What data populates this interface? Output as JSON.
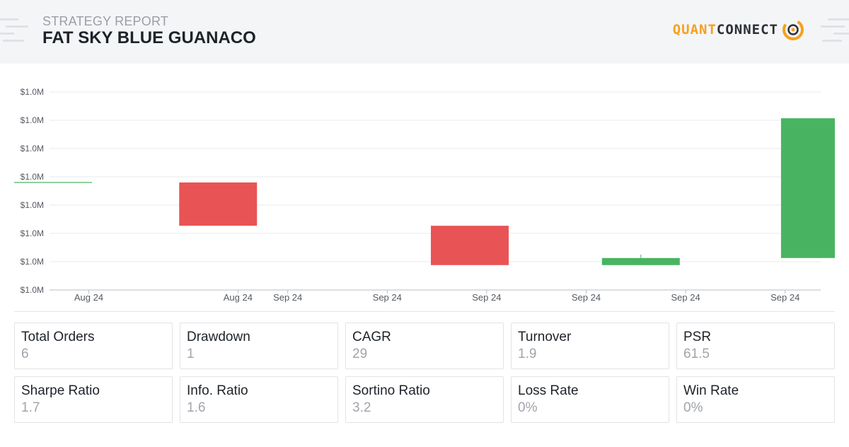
{
  "header": {
    "eyebrow": "STRATEGY REPORT",
    "title": "FAT SKY BLUE GUANACO",
    "logo_part1": "QUANT",
    "logo_part2": "CONNECT"
  },
  "colors": {
    "up": "#48b461",
    "down": "#e85455",
    "grid": "#e6e8eb",
    "axis_text": "#555a62",
    "brand_orange": "#f5a11c",
    "brand_dark": "#2b3036"
  },
  "chart_data": {
    "type": "candlestick",
    "title": "",
    "ylabel": "",
    "xlabel": "",
    "y_tick_labels": [
      "$1.0M",
      "$1.0M",
      "$1.0M",
      "$1.0M",
      "$1.0M",
      "$1.0M",
      "$1.0M",
      "$1.0M"
    ],
    "ylim": [
      0,
      7
    ],
    "x_tick_labels": [
      "Aug 24",
      "Aug 24",
      "Sep 24",
      "Sep 24",
      "Sep 24",
      "Sep 24",
      "Sep 24",
      "Sep 24"
    ],
    "x_tick_positions": [
      0.5,
      2.0,
      2.5,
      3.5,
      4.5,
      5.5,
      6.5,
      7.5
    ],
    "xlim": [
      -0.25,
      8.0
    ],
    "candles": [
      {
        "x": 0.0,
        "open": 3.8,
        "close": 3.8,
        "high": 3.8,
        "low": 3.8
      },
      {
        "x": 1.8,
        "open": 3.8,
        "close": 2.27,
        "high": 3.8,
        "low": 2.27
      },
      {
        "x": 4.33,
        "open": 2.27,
        "close": 0.88,
        "high": 2.27,
        "low": 0.88
      },
      {
        "x": 6.05,
        "open": 0.88,
        "close": 1.13,
        "high": 1.25,
        "low": 0.88
      },
      {
        "x": 7.85,
        "open": 1.13,
        "close": 6.07,
        "high": 6.07,
        "low": 1.13
      }
    ]
  },
  "stats": [
    {
      "label": "Total Orders",
      "value": "6"
    },
    {
      "label": "Drawdown",
      "value": "1"
    },
    {
      "label": "CAGR",
      "value": "29"
    },
    {
      "label": "Turnover",
      "value": "1.9"
    },
    {
      "label": "PSR",
      "value": "61.5"
    },
    {
      "label": "Sharpe Ratio",
      "value": "1.7"
    },
    {
      "label": "Info. Ratio",
      "value": "1.6"
    },
    {
      "label": "Sortino Ratio",
      "value": "3.2"
    },
    {
      "label": "Loss Rate",
      "value": "0%"
    },
    {
      "label": "Win Rate",
      "value": "0%"
    }
  ]
}
